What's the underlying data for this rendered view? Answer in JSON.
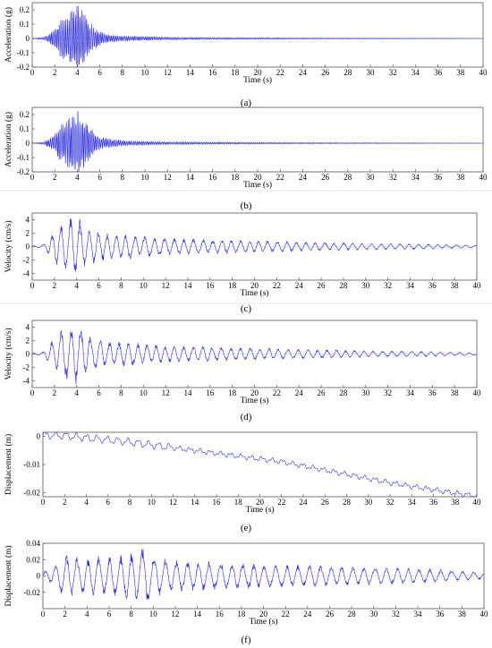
{
  "chart_data": [
    {
      "type": "line",
      "panel_label": "(a)",
      "xlabel": "Time (s)",
      "ylabel": "Acceleration (g)",
      "xlim": [
        0,
        40
      ],
      "ylim": [
        -0.2,
        0.25
      ],
      "xticks": [
        0,
        2,
        4,
        6,
        8,
        10,
        12,
        14,
        16,
        18,
        20,
        22,
        24,
        26,
        28,
        30,
        32,
        34,
        36,
        38,
        40
      ],
      "yticks": [
        -0.2,
        -0.1,
        0,
        0.1,
        0.2
      ],
      "ytick_labels": [
        "-0.2",
        "-0.1",
        "0",
        "0.1",
        "0.2"
      ],
      "grid": false,
      "color": "#2b2bd9",
      "series": [
        {
          "x": [
            0,
            1,
            1.5,
            2,
            2.5,
            3,
            3.5,
            4,
            4.5,
            5,
            5.5,
            6,
            7,
            8,
            10,
            12,
            15,
            20,
            25,
            30,
            35,
            40
          ],
          "y_envelope": [
            0,
            0.01,
            0.03,
            0.07,
            0.13,
            0.16,
            0.2,
            0.24,
            0.2,
            0.13,
            0.08,
            0.05,
            0.03,
            0.02,
            0.015,
            0.01,
            0.008,
            0.006,
            0.004,
            0.003,
            0.002,
            0.001
          ]
        }
      ]
    },
    {
      "type": "line",
      "panel_label": "(b)",
      "xlabel": "Time (s)",
      "ylabel": "Acceleration (g)",
      "xlim": [
        0,
        40
      ],
      "ylim": [
        -0.2,
        0.25
      ],
      "xticks": [
        0,
        2,
        4,
        6,
        8,
        10,
        12,
        14,
        16,
        18,
        20,
        22,
        24,
        26,
        28,
        30,
        32,
        34,
        36,
        38,
        40
      ],
      "yticks": [
        -0.2,
        -0.1,
        0,
        0.1,
        0.2
      ],
      "ytick_labels": [
        "-0.2",
        "-0.1",
        "0",
        "0.1",
        "0.2"
      ],
      "grid": false,
      "color": "#2b2bd9",
      "series": [
        {
          "x": [
            0,
            1,
            1.5,
            2,
            2.5,
            3,
            3.5,
            4,
            4.5,
            5,
            5.5,
            6,
            7,
            8,
            10,
            12,
            15,
            20,
            25,
            30,
            35,
            40
          ],
          "y_envelope": [
            0,
            0.01,
            0.03,
            0.07,
            0.13,
            0.16,
            0.2,
            0.24,
            0.2,
            0.13,
            0.08,
            0.05,
            0.03,
            0.02,
            0.015,
            0.01,
            0.008,
            0.006,
            0.004,
            0.003,
            0.002,
            0.001
          ]
        }
      ]
    },
    {
      "type": "line",
      "panel_label": "(c)",
      "xlabel": "Time (s)",
      "ylabel": "Velocity (cm/s)",
      "xlim": [
        0,
        40
      ],
      "ylim": [
        -5,
        5
      ],
      "xticks": [
        0,
        2,
        4,
        6,
        8,
        10,
        12,
        14,
        16,
        18,
        20,
        22,
        24,
        26,
        28,
        30,
        32,
        34,
        36,
        38,
        40
      ],
      "yticks": [
        -4,
        -2,
        0,
        2,
        4
      ],
      "ytick_labels": [
        "-4",
        "-2",
        "0",
        "2",
        "4"
      ],
      "grid": false,
      "color": "#2b2bd9",
      "series": [
        {
          "x": [
            0,
            1,
            2,
            2.5,
            3,
            3.5,
            4,
            4.5,
            5,
            6,
            7,
            8,
            9,
            10,
            12,
            14,
            16,
            20,
            25,
            30,
            35,
            40
          ],
          "y_envelope": [
            0.1,
            0.3,
            2.5,
            3.5,
            4.2,
            4.5,
            4.6,
            3.8,
            2.8,
            2.3,
            2.0,
            1.9,
            1.8,
            1.6,
            1.3,
            1.2,
            1.1,
            0.9,
            0.7,
            0.5,
            0.4,
            0.2
          ]
        }
      ]
    },
    {
      "type": "line",
      "panel_label": "(d)",
      "xlabel": "Time (s)",
      "ylabel": "Velocity (cm/s)",
      "xlim": [
        0,
        40
      ],
      "ylim": [
        -5,
        5
      ],
      "xticks": [
        0,
        2,
        4,
        6,
        8,
        10,
        12,
        14,
        16,
        18,
        20,
        22,
        24,
        26,
        28,
        30,
        32,
        34,
        36,
        38,
        40
      ],
      "yticks": [
        -4,
        -2,
        0,
        2,
        4
      ],
      "ytick_labels": [
        "-4",
        "-2",
        "0",
        "2",
        "4"
      ],
      "grid": false,
      "color": "#2b2bd9",
      "series": [
        {
          "x": [
            0,
            1,
            2,
            2.5,
            3,
            3.5,
            4,
            4.5,
            5,
            6,
            7,
            8,
            9,
            10,
            12,
            14,
            16,
            20,
            25,
            30,
            35,
            40
          ],
          "y_envelope": [
            0.1,
            0.3,
            2.5,
            3.5,
            4.2,
            4.5,
            4.6,
            3.8,
            2.8,
            2.3,
            2.0,
            1.9,
            1.8,
            1.6,
            1.3,
            1.2,
            1.1,
            0.9,
            0.7,
            0.5,
            0.4,
            0.2
          ]
        }
      ]
    },
    {
      "type": "line",
      "panel_label": "(e)",
      "xlabel": "Time (s)",
      "ylabel": "Displacement (m)",
      "xlim": [
        0,
        40
      ],
      "ylim": [
        -0.0215,
        0.0015
      ],
      "xticks": [
        0,
        2,
        4,
        6,
        8,
        10,
        12,
        14,
        16,
        18,
        20,
        22,
        24,
        26,
        28,
        30,
        32,
        34,
        36,
        38,
        40
      ],
      "yticks": [
        -0.02,
        -0.01,
        0
      ],
      "ytick_labels": [
        "-0.02",
        "-0.01",
        "0"
      ],
      "grid": false,
      "color": "#2b2bd9",
      "series": [
        {
          "x": [
            0,
            2,
            4,
            6,
            8,
            10,
            12,
            14,
            16,
            18,
            20,
            22,
            24,
            26,
            28,
            30,
            32,
            34,
            36,
            38,
            40
          ],
          "y": [
            0.0005,
            0.0003,
            -0.0005,
            -0.0012,
            -0.002,
            -0.003,
            -0.004,
            -0.005,
            -0.006,
            -0.007,
            -0.008,
            -0.009,
            -0.0105,
            -0.012,
            -0.0135,
            -0.015,
            -0.0165,
            -0.0178,
            -0.019,
            -0.0202,
            -0.0213
          ]
        }
      ]
    },
    {
      "type": "line",
      "panel_label": "(f)",
      "xlabel": "Time (s)",
      "ylabel": "Displacement (m)",
      "xlim": [
        0,
        40
      ],
      "ylim": [
        -0.04,
        0.04
      ],
      "xticks": [
        0,
        2,
        4,
        6,
        8,
        10,
        12,
        14,
        16,
        18,
        20,
        22,
        24,
        26,
        28,
        30,
        32,
        34,
        36,
        38,
        40
      ],
      "yticks": [
        -0.02,
        0,
        0.02,
        0.04
      ],
      "ytick_labels": [
        "-0.02",
        "0",
        "0.02",
        "0.04"
      ],
      "grid": false,
      "color": "#2b2bd9",
      "series": [
        {
          "x": [
            0,
            1,
            2,
            3,
            4,
            5,
            6,
            7,
            8,
            9,
            9.5,
            10,
            11,
            12,
            14,
            16,
            20,
            25,
            30,
            35,
            40
          ],
          "y_envelope": [
            0.005,
            0.012,
            0.028,
            0.025,
            0.022,
            0.025,
            0.025,
            0.026,
            0.03,
            0.038,
            0.04,
            0.028,
            0.022,
            0.02,
            0.019,
            0.017,
            0.015,
            0.013,
            0.011,
            0.009,
            0.004
          ]
        }
      ]
    }
  ]
}
